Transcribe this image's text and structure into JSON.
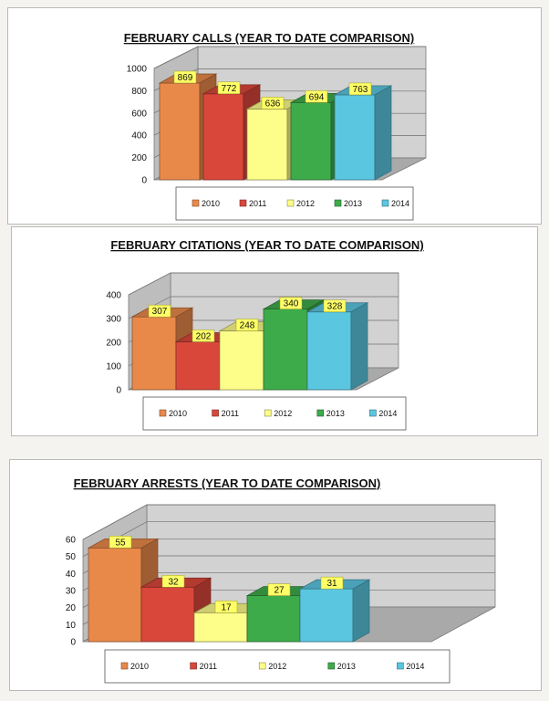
{
  "charts": [
    {
      "type": "bar",
      "title": "FEBRUARY CALLS (YEAR TO DATE COMPARISON)",
      "categories": [
        "2010",
        "2011",
        "2012",
        "2013",
        "2014"
      ],
      "values": [
        869,
        772,
        636,
        694,
        763
      ],
      "colors": [
        "#e8894a",
        "#d9473b",
        "#fdfd8a",
        "#3eab4a",
        "#5bc6e0"
      ],
      "ylim": [
        0,
        1000
      ],
      "yticks": [
        "0",
        "200",
        "400",
        "600",
        "800",
        "1000"
      ],
      "legend_position": "bottom",
      "grid": true
    },
    {
      "type": "bar",
      "title": "FEBRUARY CITATIONS (YEAR TO DATE COMPARISON)",
      "categories": [
        "2010",
        "2011",
        "2012",
        "2013",
        "2014"
      ],
      "values": [
        307,
        202,
        248,
        340,
        328
      ],
      "colors": [
        "#e8894a",
        "#d9473b",
        "#fdfd8a",
        "#3eab4a",
        "#5bc6e0"
      ],
      "ylim": [
        0,
        400
      ],
      "yticks": [
        "0",
        "100",
        "200",
        "300",
        "400"
      ],
      "legend_position": "bottom",
      "grid": true
    },
    {
      "type": "bar",
      "title": "FEBRUARY ARRESTS (YEAR TO DATE COMPARISON)",
      "categories": [
        "2010",
        "2011",
        "2012",
        "2013",
        "2014"
      ],
      "values": [
        55,
        32,
        17,
        27,
        31
      ],
      "colors": [
        "#e8894a",
        "#d9473b",
        "#fdfd8a",
        "#3eab4a",
        "#5bc6e0"
      ],
      "ylim": [
        0,
        60
      ],
      "yticks": [
        "0",
        "10",
        "20",
        "30",
        "40",
        "50",
        "60"
      ],
      "legend_position": "bottom",
      "grid": true
    }
  ],
  "chart_data": [
    {
      "type": "bar",
      "title": "FEBRUARY CALLS (YEAR TO DATE COMPARISON)",
      "categories": [
        "2010",
        "2011",
        "2012",
        "2013",
        "2014"
      ],
      "values": [
        869,
        772,
        636,
        694,
        763
      ],
      "xlabel": "",
      "ylabel": "",
      "ylim": [
        0,
        1000
      ]
    },
    {
      "type": "bar",
      "title": "FEBRUARY CITATIONS (YEAR TO DATE COMPARISON)",
      "categories": [
        "2010",
        "2011",
        "2012",
        "2013",
        "2014"
      ],
      "values": [
        307,
        202,
        248,
        340,
        328
      ],
      "xlabel": "",
      "ylabel": "",
      "ylim": [
        0,
        400
      ]
    },
    {
      "type": "bar",
      "title": "FEBRUARY ARRESTS (YEAR TO DATE COMPARISON)",
      "categories": [
        "2010",
        "2011",
        "2012",
        "2013",
        "2014"
      ],
      "values": [
        55,
        32,
        17,
        27,
        31
      ],
      "xlabel": "",
      "ylabel": "",
      "ylim": [
        0,
        60
      ]
    }
  ]
}
